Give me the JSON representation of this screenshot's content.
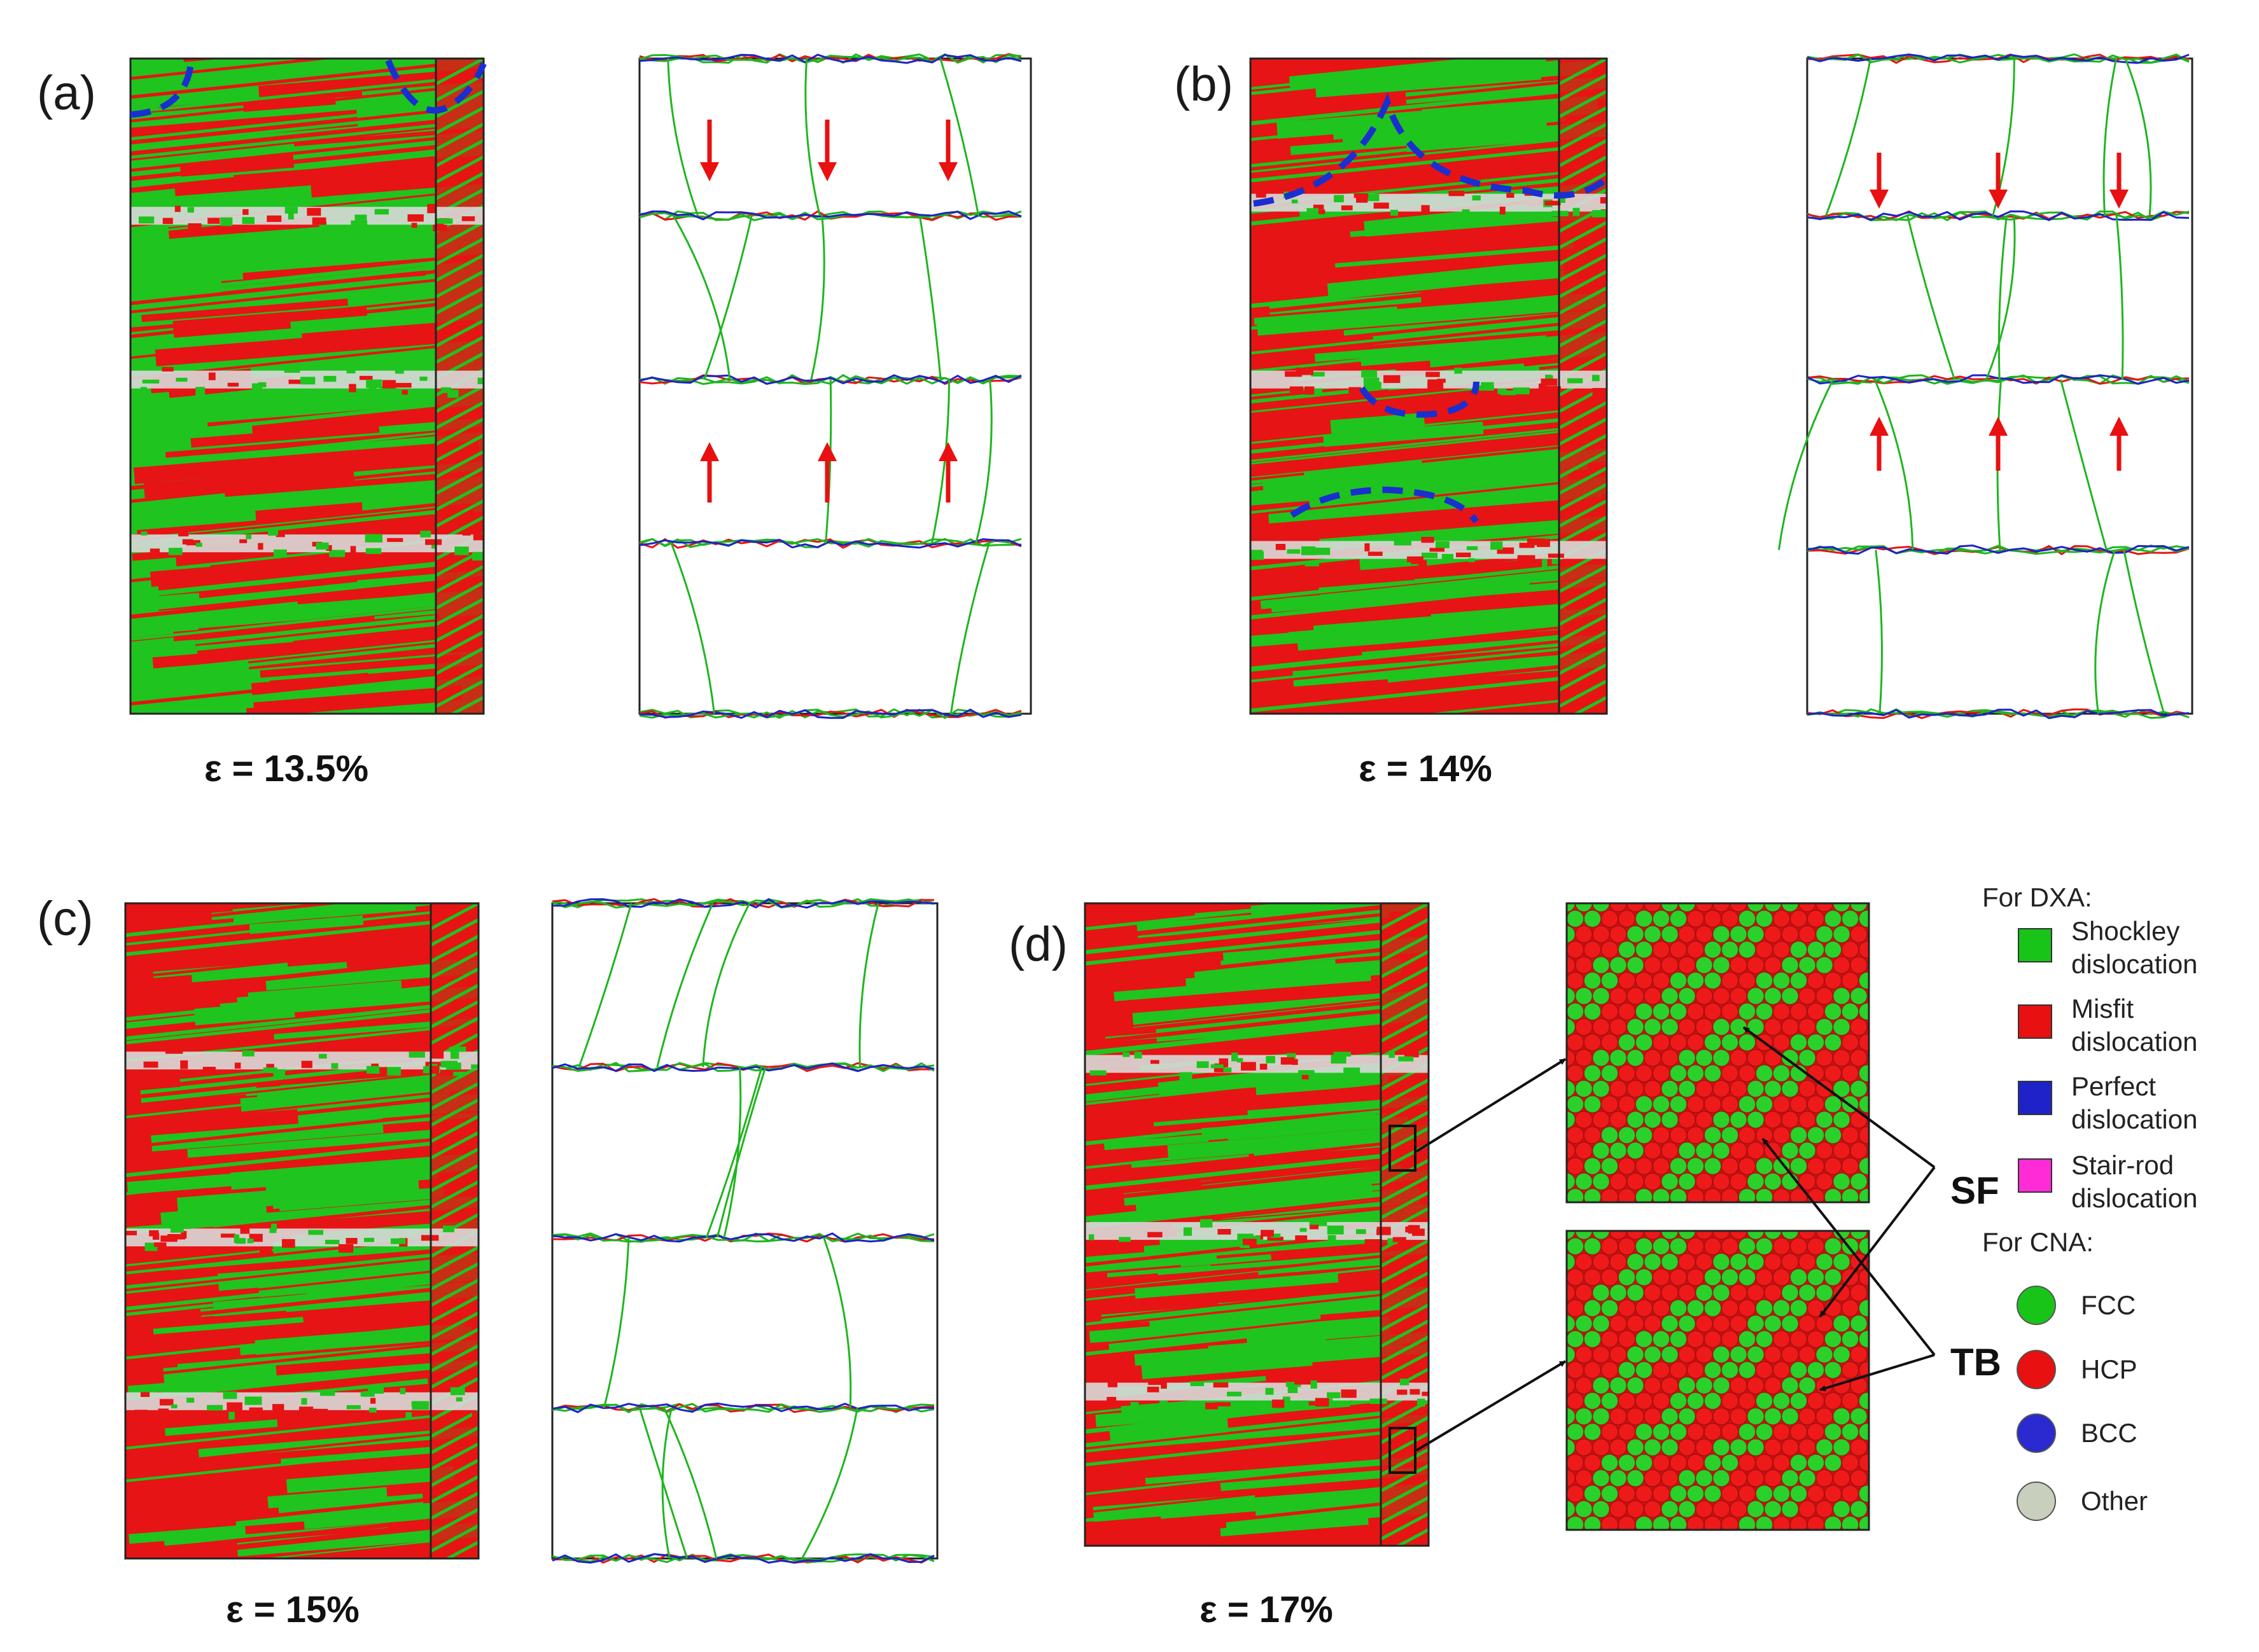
{
  "panels": [
    {
      "label": "(a)",
      "strain": "ε = 13.5%"
    },
    {
      "label": "(b)",
      "strain": "ε = 14%"
    },
    {
      "label": "(c)",
      "strain": "ε = 15%"
    },
    {
      "label": "(d)",
      "strain": "ε = 17%"
    }
  ],
  "annotations": {
    "sf": "SF",
    "tb": "TB"
  },
  "legend": {
    "dxa_title": "For DXA:",
    "dxa_items": [
      {
        "line1": "Shockley",
        "line2": "dislocation",
        "color": "#19c419"
      },
      {
        "line1": "Misfit",
        "line2": "dislocation",
        "color": "#e81010"
      },
      {
        "line1": "Perfect",
        "line2": "dislocation",
        "color": "#1e22c8"
      },
      {
        "line1": "Stair-rod",
        "line2": "dislocation",
        "color": "#ff2bd6"
      }
    ],
    "cna_title": "For CNA:",
    "cna_items": [
      {
        "label": "FCC",
        "color": "#19c419"
      },
      {
        "label": "HCP",
        "color": "#e81010"
      },
      {
        "label": "BCC",
        "color": "#2a2ad0"
      },
      {
        "label": "Other",
        "color": "#c8cfbd"
      }
    ]
  },
  "colors": {
    "fcc": "#1fc41f",
    "hcp": "#e61414",
    "other": "#d9d9d9",
    "dislocation": "#1fb51f",
    "arrow": "#e81010",
    "dashed": "#1a2fd0"
  }
}
